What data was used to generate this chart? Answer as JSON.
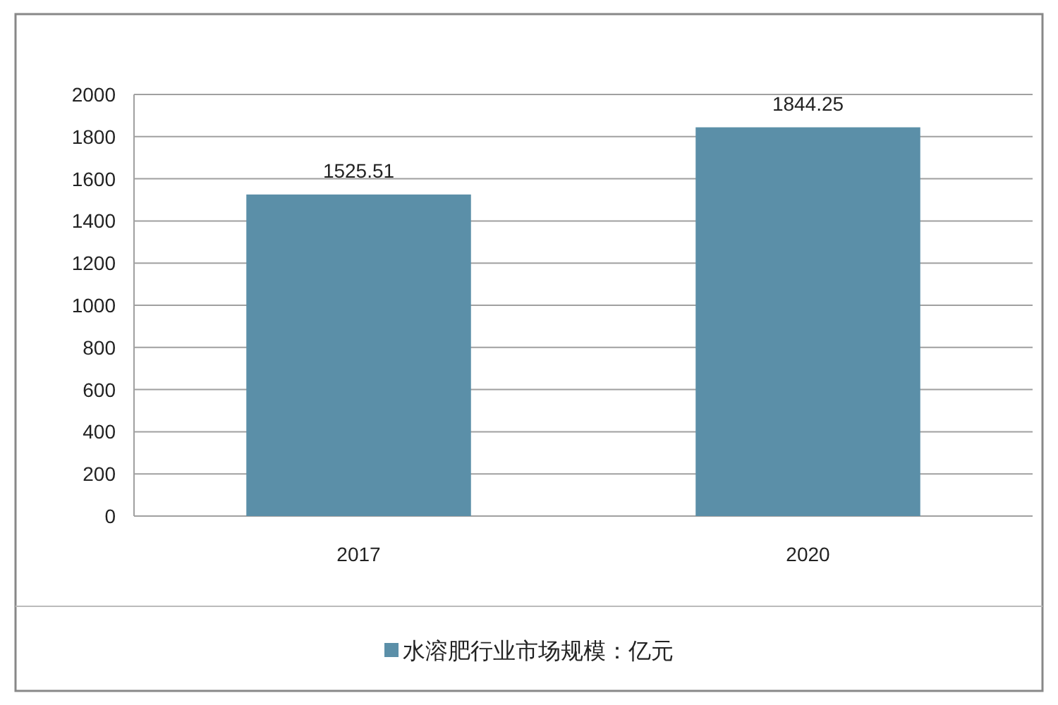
{
  "chart_data": {
    "type": "bar",
    "categories": [
      "2017",
      "2020"
    ],
    "series": [
      {
        "name": "水溶肥行业市场规模：亿元",
        "color": "#5b8fa8",
        "values": [
          1525.51,
          1844.25
        ]
      }
    ],
    "ylim": [
      0,
      2000
    ],
    "yticks": [
      0,
      200,
      400,
      600,
      800,
      1000,
      1200,
      1400,
      1600,
      1800,
      2000
    ],
    "grid": "y",
    "legend": "bottom",
    "data_labels": true
  }
}
